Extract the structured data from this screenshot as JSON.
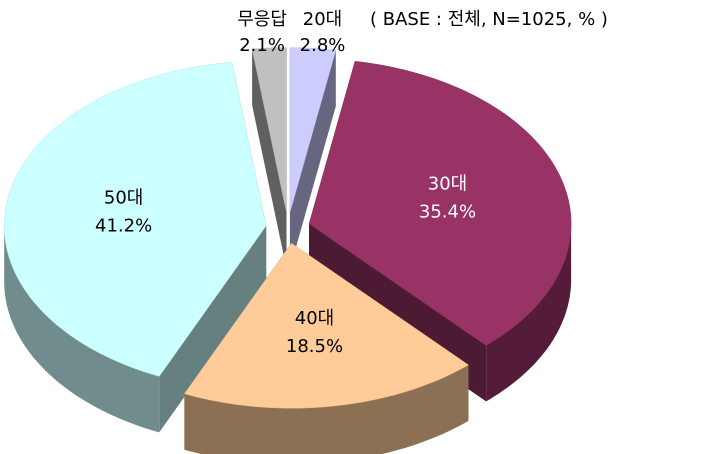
{
  "chart_data": {
    "type": "pie",
    "subtitle": "( BASE : 전체, N=1025, % )",
    "categories": [
      "20대",
      "30대",
      "40대",
      "50대",
      "무응답"
    ],
    "values": [
      2.8,
      35.4,
      18.5,
      41.2,
      2.1
    ],
    "value_labels": [
      "2.8%",
      "35.4%",
      "18.5%",
      "41.2%",
      "2.1%"
    ],
    "colors": [
      "#ccccff",
      "#993366",
      "#ffcc99",
      "#ccffff",
      "#c0c0c0"
    ],
    "label_colors": [
      "#000000",
      "#ffffff",
      "#000000",
      "#000000",
      "#000000"
    ]
  }
}
